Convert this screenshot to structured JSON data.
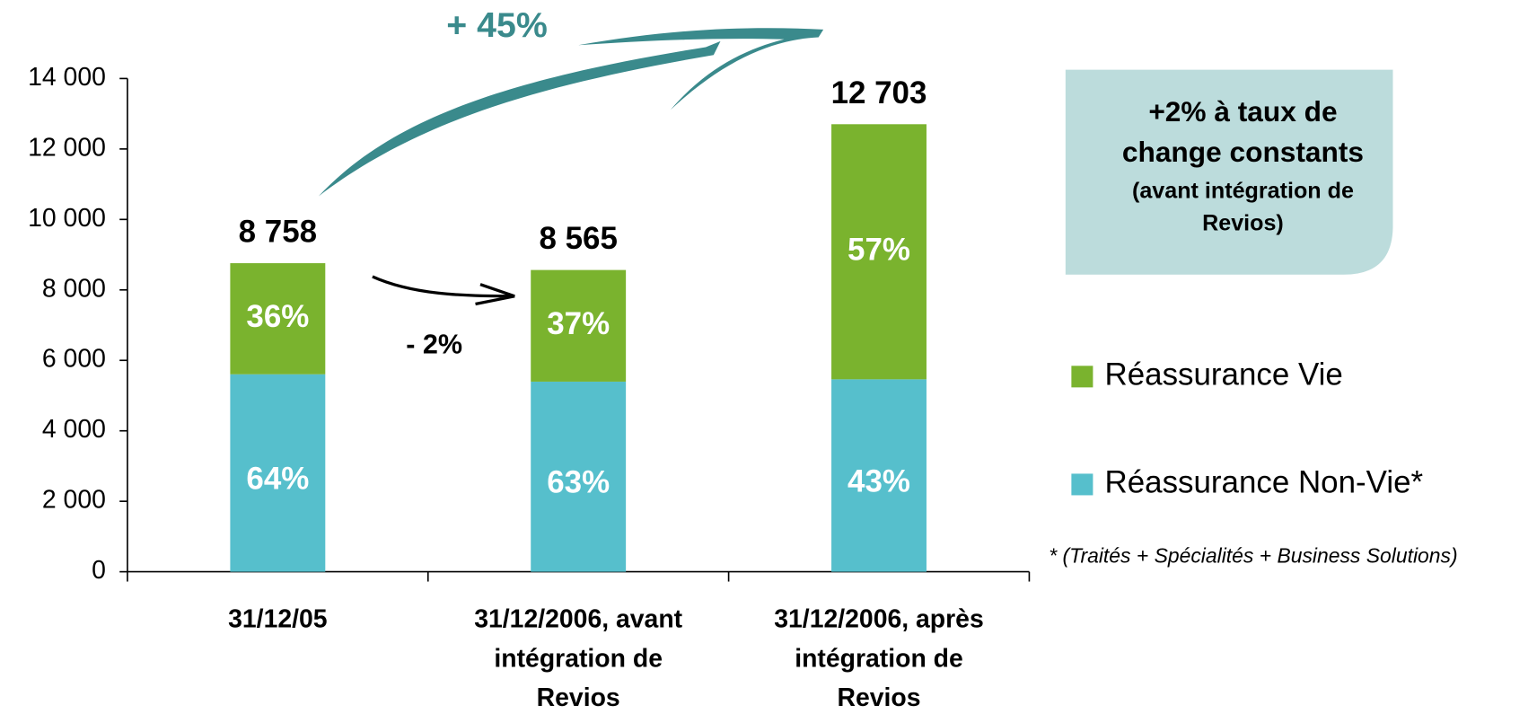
{
  "chart_data": {
    "type": "stacked_bar",
    "categories": [
      [
        "31/12/05"
      ],
      [
        "31/12/2006, avant",
        "intégration de",
        "Revios"
      ],
      [
        "31/12/2006, après",
        "intégration de",
        "Revios"
      ]
    ],
    "series": [
      {
        "name": "Réassurance Non-Vie*",
        "color": "#56bfcc",
        "values": [
          5605,
          5396,
          5462
        ],
        "segment_labels": [
          "64%",
          "63%",
          "43%"
        ]
      },
      {
        "name": "Réassurance Vie",
        "color": "#7ab32e",
        "values": [
          3153,
          3169,
          7241
        ],
        "segment_labels": [
          "36%",
          "37%",
          "57%"
        ]
      }
    ],
    "total_labels": [
      "8 758",
      "8 565",
      "12 703"
    ],
    "ylim": [
      0,
      14000
    ],
    "yticks": [
      0,
      {
        "value": 2000,
        "label": "2 000"
      },
      {
        "value": 4000,
        "label": "4 000"
      },
      {
        "value": 6000,
        "label": "6 000"
      },
      {
        "value": 8000,
        "label": "8 000"
      },
      {
        "value": 10000,
        "label": "10 000"
      },
      {
        "value": 12000,
        "label": "12 000"
      },
      {
        "value": 14000,
        "label": "14 000"
      }
    ],
    "annotations": {
      "growth": "+ 45%",
      "decline": "- 2%",
      "box_title": [
        "+2% à taux de",
        "change constants"
      ],
      "box_note": [
        "(avant intégration de",
        "Revios)"
      ],
      "footnote": "* (Traités + Spécialités + Business Solutions)"
    },
    "legend": "right"
  }
}
